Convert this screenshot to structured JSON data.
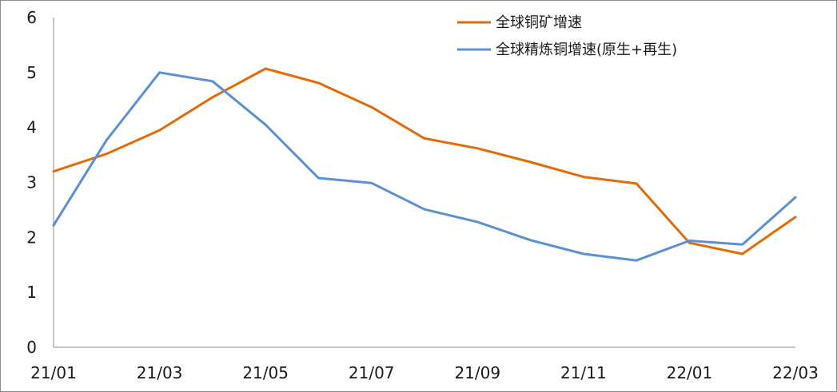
{
  "chart_data": {
    "type": "line",
    "title": "",
    "xlabel": "",
    "ylabel": "",
    "ylim": [
      0,
      6
    ],
    "yticks": [
      0,
      1,
      2,
      3,
      4,
      5,
      6
    ],
    "x": [
      "21/01",
      "21/02",
      "21/03",
      "21/04",
      "21/05",
      "21/06",
      "21/07",
      "21/08",
      "21/09",
      "21/10",
      "21/11",
      "21/12",
      "22/01",
      "22/02",
      "22/03"
    ],
    "xtick_labels": [
      "21/01",
      "21/03",
      "21/05",
      "21/07",
      "21/09",
      "21/11",
      "22/01",
      "22/03"
    ],
    "grid": false,
    "legend_position": "top-right",
    "series": [
      {
        "name": "全球铜矿增速",
        "color": "#e36c0a",
        "values": [
          3.2,
          3.52,
          3.95,
          4.55,
          5.07,
          4.81,
          4.37,
          3.8,
          3.62,
          3.37,
          3.1,
          2.98,
          1.9,
          1.7,
          2.37
        ]
      },
      {
        "name": "全球精炼铜增速(原生+再生)",
        "color": "#5b8fd6",
        "values": [
          2.22,
          3.77,
          5.0,
          4.84,
          4.05,
          3.08,
          2.99,
          2.51,
          2.28,
          1.95,
          1.7,
          1.58,
          1.94,
          1.87,
          2.73
        ]
      }
    ]
  }
}
